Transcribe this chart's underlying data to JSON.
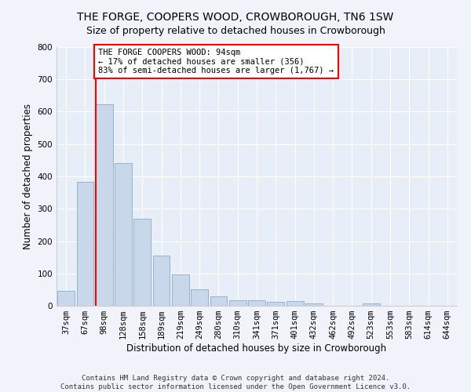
{
  "title": "THE FORGE, COOPERS WOOD, CROWBOROUGH, TN6 1SW",
  "subtitle": "Size of property relative to detached houses in Crowborough",
  "xlabel": "Distribution of detached houses by size in Crowborough",
  "ylabel": "Number of detached properties",
  "categories": [
    "37sqm",
    "67sqm",
    "98sqm",
    "128sqm",
    "158sqm",
    "189sqm",
    "219sqm",
    "249sqm",
    "280sqm",
    "310sqm",
    "341sqm",
    "371sqm",
    "401sqm",
    "432sqm",
    "462sqm",
    "492sqm",
    "523sqm",
    "553sqm",
    "583sqm",
    "614sqm",
    "644sqm"
  ],
  "values": [
    45,
    383,
    623,
    440,
    270,
    155,
    97,
    52,
    30,
    18,
    17,
    12,
    15,
    7,
    0,
    0,
    8,
    0,
    0,
    0,
    0
  ],
  "bar_color": "#c8d8ea",
  "bar_edge_color": "#8aabcc",
  "annotation_box_text": [
    "THE FORGE COOPERS WOOD: 94sqm",
    "← 17% of detached houses are smaller (356)",
    "83% of semi-detached houses are larger (1,767) →"
  ],
  "annotation_box_color": "white",
  "annotation_box_edge_color": "red",
  "vline_color": "red",
  "vline_x_index": 2,
  "ylim": [
    0,
    800
  ],
  "yticks": [
    0,
    100,
    200,
    300,
    400,
    500,
    600,
    700,
    800
  ],
  "bg_color": "#f0f4fa",
  "plot_bg_color": "#e8eef8",
  "footer": "Contains HM Land Registry data © Crown copyright and database right 2024.\nContains public sector information licensed under the Open Government Licence v3.0.",
  "title_fontsize": 10,
  "subtitle_fontsize": 9,
  "label_fontsize": 8.5,
  "tick_fontsize": 7.5,
  "footer_fontsize": 6.5,
  "ann_fontsize": 7.5
}
